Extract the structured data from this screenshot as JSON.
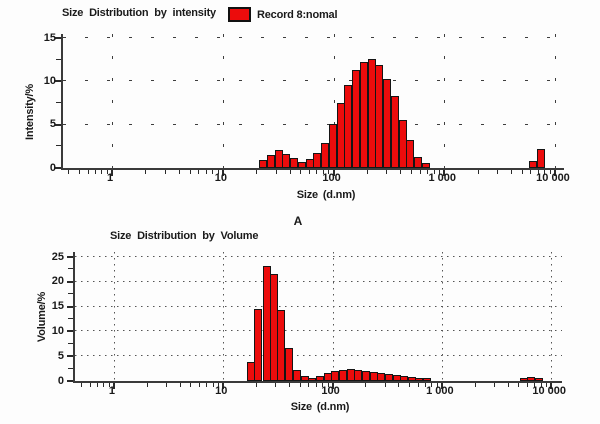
{
  "labels": {
    "panel_a": "A"
  },
  "chart_data": [
    {
      "type": "bar",
      "title": "Size Distribution by intensity",
      "legend": "Record 8:nomal",
      "xlabel": "Size (d.nm)",
      "ylabel": "Intensity/%",
      "x_scale": "log",
      "xlim": [
        0.36,
        12060
      ],
      "ylim": [
        0,
        15
      ],
      "y_ticks": [
        0,
        5,
        10,
        15
      ],
      "y_grid": [
        5,
        10,
        15
      ],
      "x_ticks": [
        1,
        10,
        100,
        1000,
        10000
      ],
      "x_tick_labels": [
        "1",
        "10",
        "100",
        "1 000",
        "10 000"
      ],
      "grid_style": "dashed",
      "bar_color": "#ec0c0c",
      "series": [
        {
          "name": "Record 8:nomal",
          "x_nm": [
            23,
            27,
            32,
            37,
            44,
            52,
            61,
            71,
            84,
            98,
            116,
            136,
            160,
            188,
            221,
            259,
            305,
            358,
            421,
            494,
            581,
            683,
            6300,
            7400
          ],
          "y_percent": [
            0.7,
            1.3,
            1.8,
            1.4,
            0.9,
            0.5,
            0.8,
            1.5,
            2.7,
            4.9,
            7.3,
            9.3,
            11.1,
            12.0,
            12.3,
            11.6,
            10.0,
            8.1,
            5.3,
            3.0,
            1.0,
            0.3,
            0.6,
            2.0
          ]
        }
      ]
    },
    {
      "type": "bar",
      "title": "Size Distribution by Volume",
      "xlabel": "Size (d.nm)",
      "ylabel": "Volume/%",
      "x_scale": "log",
      "xlim": [
        0.44,
        12560
      ],
      "ylim": [
        0,
        25
      ],
      "y_ticks": [
        0,
        5,
        10,
        15,
        20,
        25
      ],
      "y_grid": [
        5,
        10,
        15,
        20,
        25
      ],
      "x_ticks": [
        1,
        10,
        100,
        1000,
        10000
      ],
      "x_tick_labels": [
        "1",
        "10",
        "100",
        "1 000",
        "10 000"
      ],
      "grid_style": "dotted",
      "bar_color": "#ec0c0c",
      "series": [
        {
          "name": "Volume",
          "x_nm": [
            18,
            21,
            25,
            29,
            34,
            40,
            47,
            56,
            65,
            77,
            90,
            106,
            124,
            146,
            172,
            202,
            237,
            279,
            328,
            385,
            452,
            531,
            624,
            733,
            5600,
            6580,
            7730
          ],
          "y_percent": [
            3.5,
            14.2,
            22.7,
            21.2,
            14.0,
            6.3,
            1.9,
            0.6,
            0.25,
            0.7,
            1.2,
            1.6,
            1.9,
            2.0,
            1.9,
            1.7,
            1.5,
            1.3,
            1.0,
            0.8,
            0.6,
            0.45,
            0.3,
            0.2,
            0.2,
            0.4,
            0.25
          ]
        }
      ]
    }
  ]
}
